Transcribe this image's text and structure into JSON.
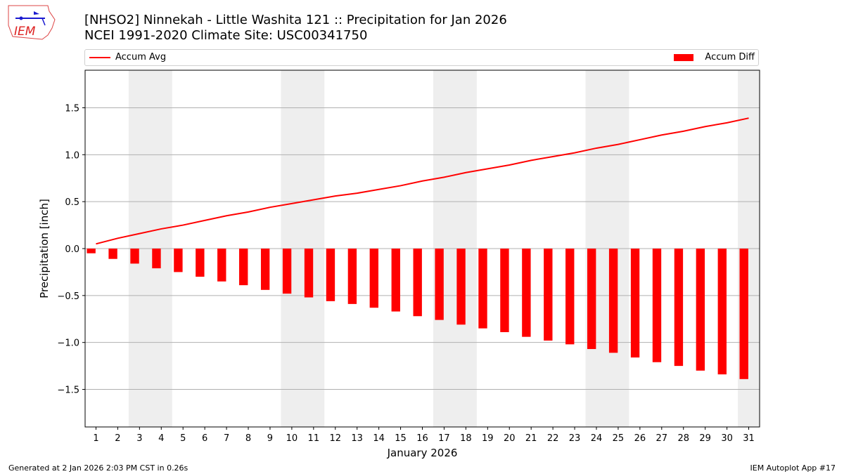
{
  "header": {
    "title_line1": "[NHSO2] Ninnekah - Little Washita 121 :: Precipitation for Jan 2026",
    "title_line2": "NCEI 1991-2020 Climate Site: USC00341750",
    "logo_text": "IEM"
  },
  "footer": {
    "generated": "Generated at 2 Jan 2026 2:03 PM CST in 0.26s",
    "app": "IEM Autoplot App #17"
  },
  "chart_data": {
    "type": "bar",
    "xlabel": "January 2026",
    "ylabel": "Precipitation [inch]",
    "ylim": [
      -1.9,
      1.9
    ],
    "yticks": [
      -1.5,
      -1.0,
      -0.5,
      0.0,
      0.5,
      1.0,
      1.5
    ],
    "ytick_labels": [
      "−1.5",
      "−1.0",
      "−0.5",
      "0.0",
      "0.5",
      "1.0",
      "1.5"
    ],
    "grid": "horizontal",
    "legend_placement": "top",
    "x": [
      1,
      2,
      3,
      4,
      5,
      6,
      7,
      8,
      9,
      10,
      11,
      12,
      13,
      14,
      15,
      16,
      17,
      18,
      19,
      20,
      21,
      22,
      23,
      24,
      25,
      26,
      27,
      28,
      29,
      30,
      31
    ],
    "weekend_shading": [
      [
        3,
        4
      ],
      [
        10,
        11
      ],
      [
        17,
        18
      ],
      [
        24,
        25
      ],
      [
        31,
        31
      ]
    ],
    "series": [
      {
        "name": "Accum Avg",
        "type": "line",
        "color": "#ff0000",
        "values": [
          0.05,
          0.11,
          0.16,
          0.21,
          0.25,
          0.3,
          0.35,
          0.39,
          0.44,
          0.48,
          0.52,
          0.56,
          0.59,
          0.63,
          0.67,
          0.72,
          0.76,
          0.81,
          0.85,
          0.89,
          0.94,
          0.98,
          1.02,
          1.07,
          1.11,
          1.16,
          1.21,
          1.25,
          1.3,
          1.34,
          1.39
        ]
      },
      {
        "name": "Accum Diff",
        "type": "bar",
        "color": "#ff0000",
        "values": [
          -0.05,
          -0.11,
          -0.16,
          -0.21,
          -0.25,
          -0.3,
          -0.35,
          -0.39,
          -0.44,
          -0.48,
          -0.52,
          -0.56,
          -0.59,
          -0.63,
          -0.67,
          -0.72,
          -0.76,
          -0.81,
          -0.85,
          -0.89,
          -0.94,
          -0.98,
          -1.02,
          -1.07,
          -1.11,
          -1.16,
          -1.21,
          -1.25,
          -1.3,
          -1.34,
          -1.39
        ]
      }
    ]
  }
}
